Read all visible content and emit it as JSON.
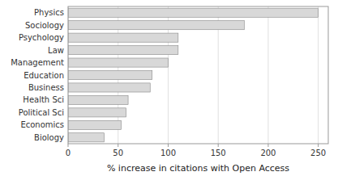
{
  "chart_data": {
    "type": "bar",
    "orientation": "horizontal",
    "categories": [
      "Biology",
      "Economics",
      "Political Sci",
      "Health Sci",
      "Business",
      "Education",
      "Management",
      "Law",
      "Psychology",
      "Sociology",
      "Physics"
    ],
    "values": [
      36,
      53,
      58,
      60,
      82,
      84,
      100,
      110,
      110,
      176,
      250
    ],
    "color": "#d8d8d8",
    "xlabel": "% increase in citations with Open Access",
    "xlim": [
      0,
      260
    ],
    "xticks": [
      0,
      50,
      100,
      150,
      200,
      250
    ],
    "grid": true
  }
}
